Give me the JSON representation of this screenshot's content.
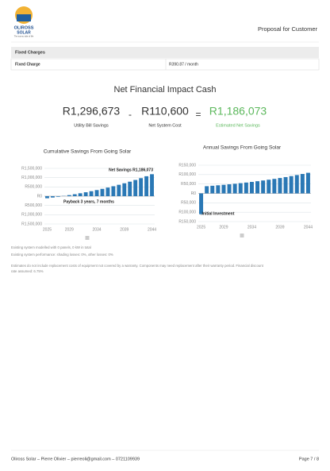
{
  "header": {
    "company": "OLIROSS",
    "company_sub": "SOLAR",
    "tagline": "The sunny side of life",
    "title": "Proposal for Customer"
  },
  "table": {
    "heading": "Fixed Charges",
    "rows": [
      [
        "Fixed Charge",
        "R390.87 / month"
      ]
    ]
  },
  "summary": {
    "title": "Net Financial Impact Cash",
    "items": [
      {
        "value": "R1,296,673",
        "label": "Utility Bill Savings"
      },
      {
        "value": "R110,600",
        "label": "Net System Cost"
      },
      {
        "value": "R1,186,073",
        "label": "Estimated Net Savings"
      }
    ],
    "operators": [
      "-",
      "="
    ]
  },
  "chart_data": [
    {
      "type": "bar",
      "title": "Cumulative Savings From Going Solar",
      "categories": [
        "2025",
        null,
        null,
        null,
        "2029",
        null,
        null,
        null,
        null,
        "2034",
        null,
        null,
        null,
        null,
        "2039",
        null,
        null,
        null,
        null,
        "2044"
      ],
      "values": [
        -110600,
        -72200,
        -31500,
        11650,
        57390,
        105870,
        157260,
        211740,
        269480,
        330690,
        395570,
        464340,
        537240,
        614510,
        696420,
        783240,
        875270,
        972820,
        1076230,
        1186073
      ],
      "color": "#2a78b5",
      "ylim": [
        -1500000,
        1500000
      ],
      "yticks": [
        {
          "value": 1500000,
          "label": "R1,500,000"
        },
        {
          "value": 1000000,
          "label": "R1,000,000"
        },
        {
          "value": 500000,
          "label": "R500,000"
        },
        {
          "value": 0,
          "label": "R0"
        },
        {
          "value": -500000,
          "label": "R500,000"
        },
        {
          "value": -1000000,
          "label": "R1,000,000"
        },
        {
          "value": -1500000,
          "label": "R1,500,000"
        }
      ],
      "grid": true,
      "annotations": [
        "Net Savings R1,186,073",
        "Payback 3 years, 7 months"
      ]
    },
    {
      "type": "bar",
      "title": "Annual Savings From Going Solar",
      "categories": [
        "2025",
        null,
        null,
        null,
        "2029",
        null,
        null,
        null,
        null,
        "2034",
        null,
        null,
        null,
        null,
        "2039",
        null,
        null,
        null,
        null,
        "2044"
      ],
      "values": [
        -110600,
        38400,
        40700,
        43150,
        45740,
        48480,
        51390,
        54480,
        57740,
        61210,
        64880,
        68770,
        72900,
        77270,
        81910,
        86820,
        92030,
        97550,
        103410,
        109610
      ],
      "color": "#2a78b5",
      "ylim": [
        -150000,
        150000
      ],
      "yticks": [
        {
          "value": 150000,
          "label": "R150,000"
        },
        {
          "value": 100000,
          "label": "R100,000"
        },
        {
          "value": 50000,
          "label": "R50,000"
        },
        {
          "value": 0,
          "label": "R0"
        },
        {
          "value": -50000,
          "label": "R50,000"
        },
        {
          "value": -100000,
          "label": "R100,000"
        },
        {
          "value": -150000,
          "label": "R150,000"
        }
      ],
      "grid": true,
      "annotations": [
        "Initial Investment"
      ]
    }
  ],
  "notes": [
    "Existing system modelled with 0 panels, 0 kW in total",
    "Existing system performance: shading losses: 0%, other losses: 0%",
    "Estimates do not include replacement costs of equipment not covered by a warranty. Components may need replacement after their warranty period. Financial discount",
    "rate assumed: 6.75%"
  ],
  "footer": {
    "left": "Oliross Solar – Pierre Olivier – pierreoli@gmail.com – 0721109939",
    "right": "Page 7 / 8"
  }
}
